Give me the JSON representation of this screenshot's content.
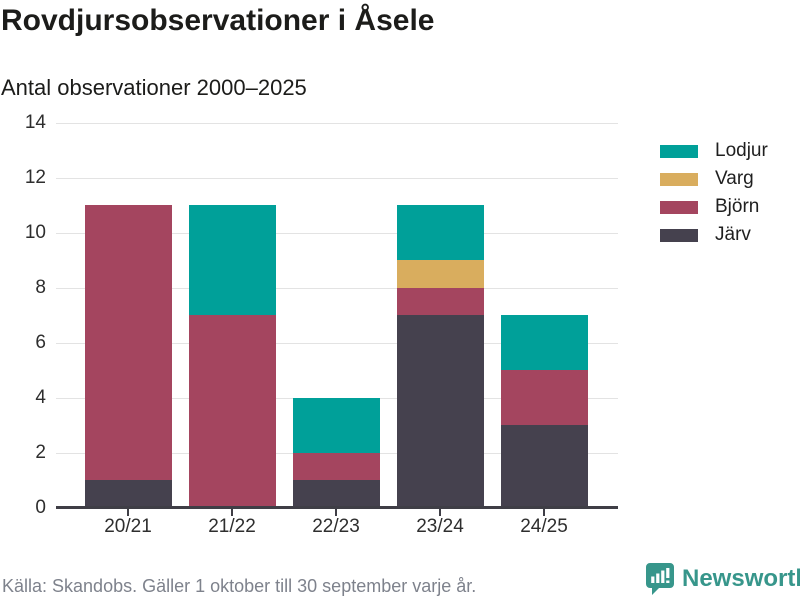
{
  "header": {
    "title": "Rovdjursobservationer i Åsele",
    "subtitle": "Antal observationer 2000–2025"
  },
  "footer": {
    "source_note": "Källa: Skandobs. Gäller 1 oktober till 30 september varje år."
  },
  "brand": {
    "name": "Newsworthy",
    "color": "#37968b",
    "icon": "bar-chart-speech-bubble-icon"
  },
  "chart_data": {
    "type": "bar",
    "stacked": true,
    "title": "Rovdjursobservationer i Åsele",
    "subtitle": "Antal observationer 2000–2025",
    "categories": [
      "20/21",
      "21/22",
      "22/23",
      "23/24",
      "24/25"
    ],
    "series": [
      {
        "name": "Järv",
        "color": "#45414e",
        "values": [
          1,
          0,
          1,
          7,
          3
        ]
      },
      {
        "name": "Björn",
        "color": "#a4455f",
        "values": [
          10,
          7,
          1,
          1,
          2
        ]
      },
      {
        "name": "Varg",
        "color": "#d9ad5e",
        "values": [
          0,
          0,
          0,
          1,
          0
        ]
      },
      {
        "name": "Lodjur",
        "color": "#00a099",
        "values": [
          0,
          4,
          2,
          2,
          2
        ]
      }
    ],
    "stack_order_bottom_to_top": [
      "Järv",
      "Björn",
      "Varg",
      "Lodjur"
    ],
    "totals": [
      11,
      11,
      4,
      11,
      7
    ],
    "legend": [
      "Lodjur",
      "Varg",
      "Björn",
      "Järv"
    ],
    "legend_position": "right",
    "xlabel": "",
    "ylabel": "",
    "ylim": [
      0,
      14
    ],
    "yticks": [
      0,
      2,
      4,
      6,
      8,
      10,
      12,
      14
    ],
    "grid": true
  }
}
